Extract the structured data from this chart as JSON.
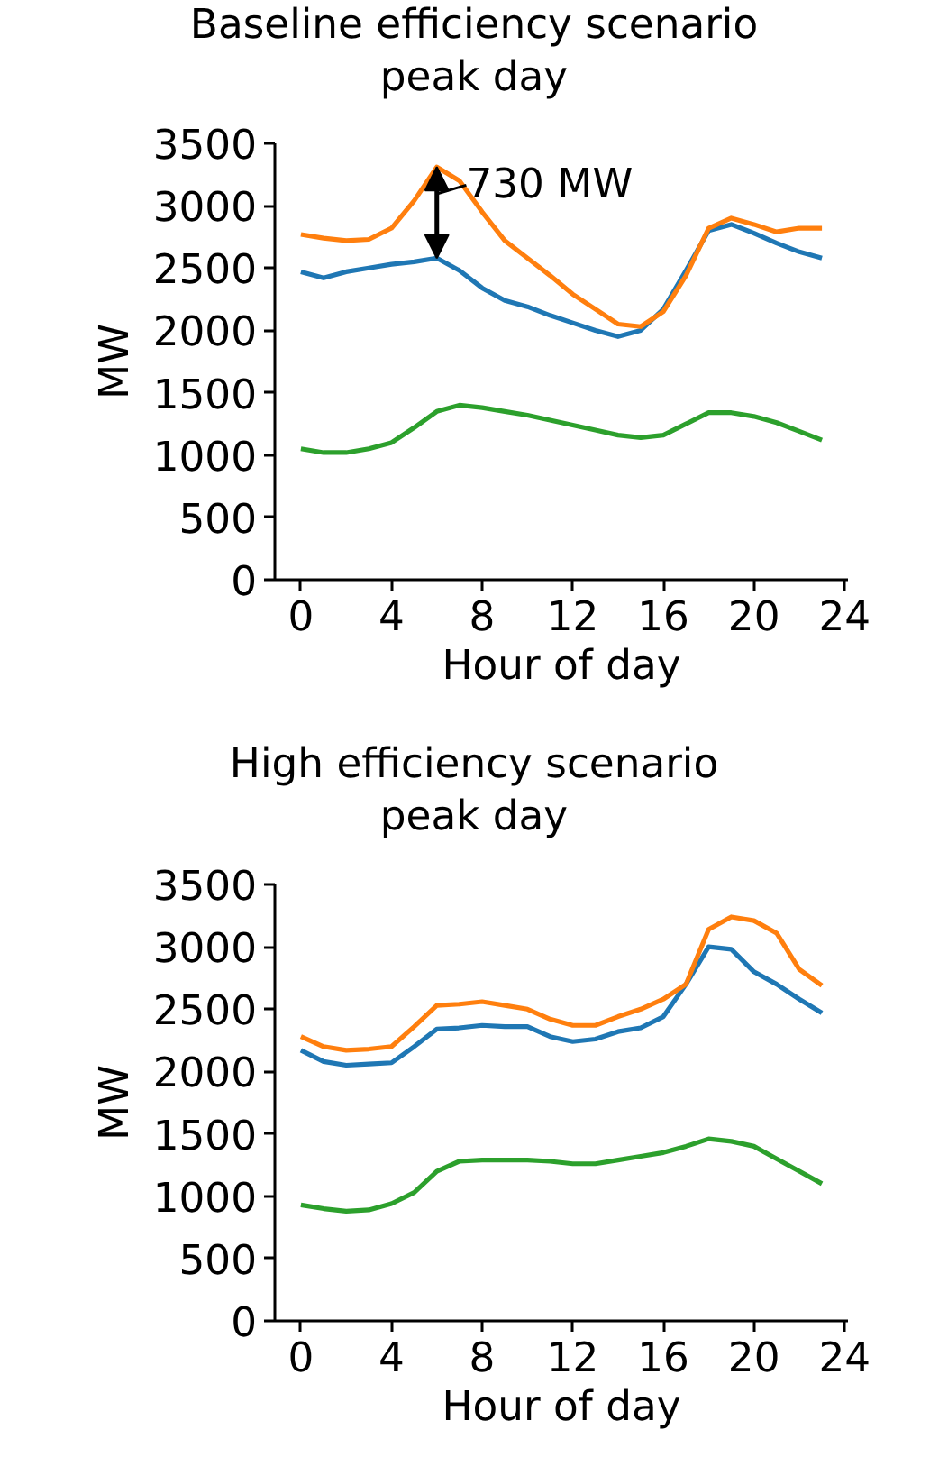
{
  "chart_data": [
    {
      "type": "line",
      "title": "Baseline efficiency scenario\npeak day",
      "xlabel": "Hour of day",
      "ylabel": "MW",
      "x": [
        0,
        1,
        2,
        3,
        4,
        5,
        6,
        7,
        8,
        9,
        10,
        11,
        12,
        13,
        14,
        15,
        16,
        17,
        18,
        19,
        20,
        21,
        22,
        23
      ],
      "xlim": [
        -1.15,
        24.15
      ],
      "ylim": [
        0,
        3500
      ],
      "xticks": [
        0,
        4,
        8,
        12,
        16,
        20,
        24
      ],
      "yticks": [
        0,
        500,
        1000,
        1500,
        2000,
        2500,
        3000,
        3500
      ],
      "grid": false,
      "line_style": "solid",
      "series": [
        {
          "color": "#1f77b4",
          "values": [
            2470,
            2420,
            2470,
            2500,
            2530,
            2550,
            2580,
            2480,
            2340,
            2240,
            2190,
            2120,
            2060,
            2000,
            1950,
            2000,
            2170,
            2480,
            2800,
            2850,
            2780,
            2700,
            2630,
            2580
          ]
        },
        {
          "color": "#ff7f0e",
          "values": [
            2770,
            2740,
            2720,
            2730,
            2820,
            3040,
            3310,
            3200,
            2950,
            2720,
            2580,
            2440,
            2290,
            2170,
            2050,
            2030,
            2150,
            2440,
            2820,
            2900,
            2850,
            2790,
            2820,
            2820
          ]
        },
        {
          "color": "#2ca02c",
          "values": [
            1050,
            1020,
            1020,
            1050,
            1100,
            1220,
            1350,
            1400,
            1380,
            1350,
            1320,
            1280,
            1240,
            1200,
            1160,
            1140,
            1160,
            1250,
            1340,
            1340,
            1310,
            1260,
            1190,
            1120
          ]
        }
      ],
      "annotations": [
        {
          "text": "730 MW",
          "x": 6,
          "y": 3310
        }
      ]
    },
    {
      "type": "line",
      "title": "High efficiency scenario\npeak day",
      "xlabel": "Hour of day",
      "ylabel": "MW",
      "x": [
        0,
        1,
        2,
        3,
        4,
        5,
        6,
        7,
        8,
        9,
        10,
        11,
        12,
        13,
        14,
        15,
        16,
        17,
        18,
        19,
        20,
        21,
        22,
        23
      ],
      "xlim": [
        -1.15,
        24.15
      ],
      "ylim": [
        0,
        3500
      ],
      "xticks": [
        0,
        4,
        8,
        12,
        16,
        20,
        24
      ],
      "yticks": [
        0,
        500,
        1000,
        1500,
        2000,
        2500,
        3000,
        3500
      ],
      "grid": false,
      "line_style": "solid",
      "series": [
        {
          "color": "#1f77b4",
          "values": [
            2170,
            2080,
            2050,
            2060,
            2070,
            2200,
            2340,
            2350,
            2370,
            2360,
            2360,
            2280,
            2240,
            2260,
            2320,
            2350,
            2440,
            2700,
            3000,
            2980,
            2800,
            2700,
            2580,
            2470
          ]
        },
        {
          "color": "#ff7f0e",
          "values": [
            2280,
            2200,
            2170,
            2180,
            2200,
            2360,
            2530,
            2540,
            2560,
            2530,
            2500,
            2420,
            2370,
            2370,
            2440,
            2500,
            2580,
            2700,
            3140,
            3240,
            3210,
            3110,
            2820,
            2690
          ]
        },
        {
          "color": "#2ca02c",
          "values": [
            930,
            900,
            880,
            890,
            940,
            1030,
            1200,
            1280,
            1290,
            1290,
            1290,
            1280,
            1260,
            1260,
            1290,
            1320,
            1350,
            1400,
            1460,
            1440,
            1400,
            1300,
            1200,
            1100
          ]
        }
      ]
    }
  ]
}
